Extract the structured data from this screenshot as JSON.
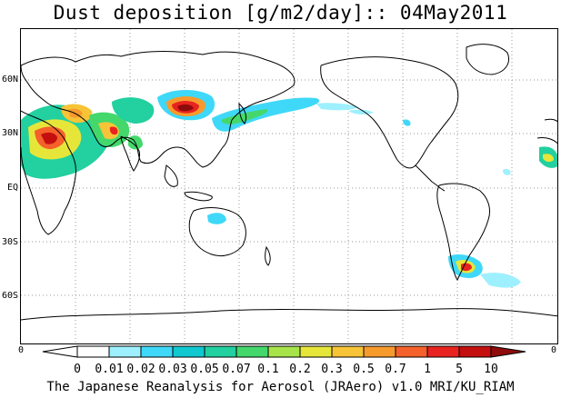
{
  "title": "Dust deposition [g/m2/day]:: 04May2011",
  "footer": "The Japanese Reanalysis for Aerosol (JRAero) v1.0 MRI/KU_RIAM",
  "lat_labels": [
    "60N",
    "30N",
    "EQ",
    "30S",
    "60S"
  ],
  "edge_labels": {
    "left": "0",
    "right": "0"
  },
  "colorbar": {
    "labels": [
      "0",
      "0.01",
      "0.02",
      "0.03",
      "0.05",
      "0.07",
      "0.1",
      "0.2",
      "0.3",
      "0.5",
      "0.7",
      "1",
      "5",
      "10"
    ],
    "colors": [
      "#ffffff",
      "#ffffff",
      "#9ef0ff",
      "#3fd8f8",
      "#10c8d0",
      "#22d0a0",
      "#44d86c",
      "#a6e44a",
      "#e6e63a",
      "#f7c437",
      "#f79a2c",
      "#f5612a",
      "#e8231f",
      "#c40f0f",
      "#8e0b0b"
    ]
  },
  "colors": {
    "land_outline": "#000000",
    "grid": "#9a9a9a"
  }
}
